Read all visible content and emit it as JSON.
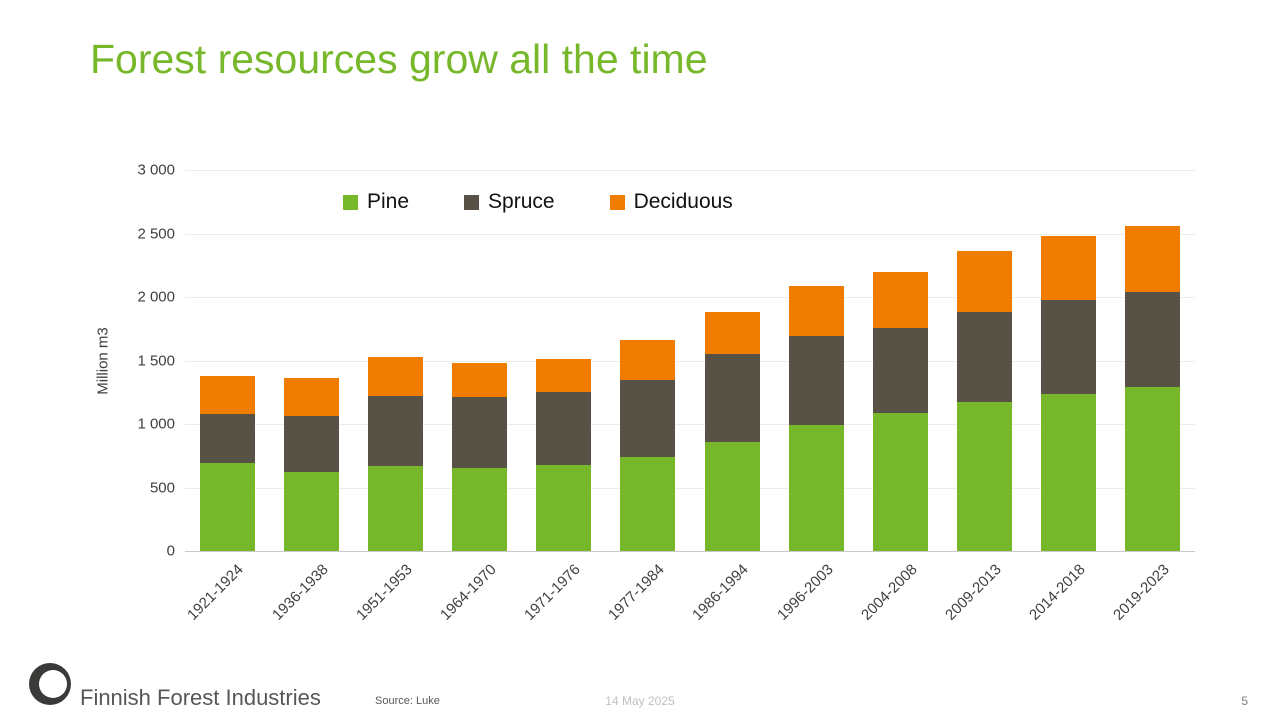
{
  "slide": {
    "title": "Forest resources grow all the time",
    "footer_brand": "Finnish Forest Industries",
    "source": "Source: Luke",
    "date": "14 May 2025",
    "page_number": "5"
  },
  "chart_data": {
    "type": "bar",
    "stacked": true,
    "title": "",
    "xlabel": "",
    "ylabel": "Million m3",
    "ylim": [
      0,
      3000
    ],
    "grid": true,
    "legend_position": "top-left-inside",
    "yticks": [
      {
        "value": 0,
        "label": "0"
      },
      {
        "value": 500,
        "label": "500"
      },
      {
        "value": 1000,
        "label": "1 000"
      },
      {
        "value": 1500,
        "label": "1 500"
      },
      {
        "value": 2000,
        "label": "2 000"
      },
      {
        "value": 2500,
        "label": "2 500"
      },
      {
        "value": 3000,
        "label": "3 000"
      }
    ],
    "categories": [
      "1921-1924",
      "1936-1938",
      "1951-1953",
      "1964-1970",
      "1971-1976",
      "1977-1984",
      "1986-1994",
      "1996-2003",
      "2004-2008",
      "2009-2013",
      "2014-2018",
      "2019-2023"
    ],
    "series": [
      {
        "name": "Pine",
        "color": "#76b82a",
        "values": [
          690,
          620,
          670,
          650,
          680,
          740,
          860,
          990,
          1090,
          1170,
          1240,
          1290
        ]
      },
      {
        "name": "Spruce",
        "color": "#575146",
        "values": [
          390,
          440,
          550,
          560,
          570,
          610,
          690,
          700,
          670,
          710,
          740,
          750
        ]
      },
      {
        "name": "Deciduous",
        "color": "#f07d00",
        "values": [
          300,
          300,
          310,
          270,
          260,
          310,
          330,
          400,
          440,
          480,
          500,
          520
        ]
      }
    ]
  }
}
